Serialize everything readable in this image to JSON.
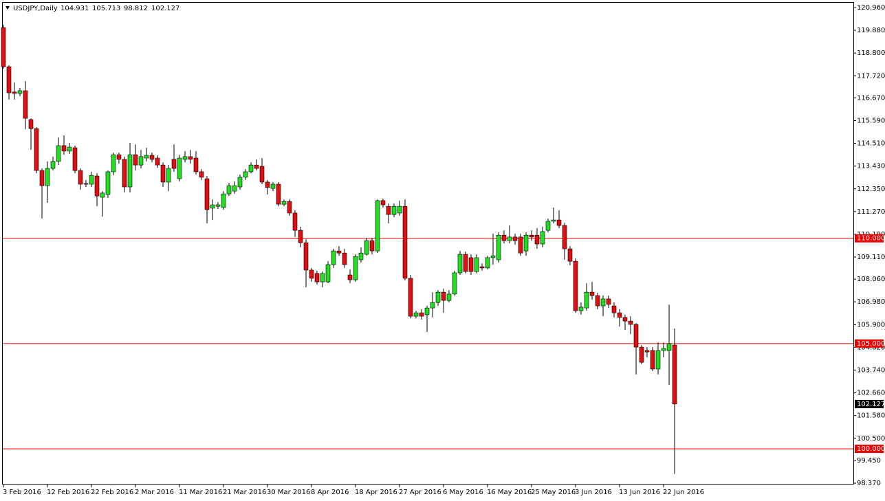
{
  "chart_data": {
    "type": "candlestick",
    "title": "USDJPY,Daily",
    "up_color": "#22dd22",
    "down_color": "#dd1111",
    "level_color": "#ee0000",
    "categories": [
      "3 Feb 2016",
      null,
      null,
      null,
      null,
      null,
      null,
      null,
      "12 Feb 2016",
      null,
      null,
      null,
      null,
      null,
      null,
      null,
      "22 Feb 2016",
      null,
      null,
      null,
      null,
      null,
      null,
      null,
      "2 Mar 2016",
      null,
      null,
      null,
      null,
      null,
      null,
      null,
      "11 Mar 2016",
      null,
      null,
      null,
      null,
      null,
      null,
      null,
      "21 Mar 2016",
      null,
      null,
      null,
      null,
      null,
      null,
      null,
      "30 Mar 2016",
      null,
      null,
      null,
      null,
      null,
      null,
      null,
      "8 Apr 2016",
      null,
      null,
      null,
      null,
      null,
      null,
      null,
      "18 Apr 2016",
      null,
      null,
      null,
      null,
      null,
      null,
      null,
      "27 Apr 2016",
      null,
      null,
      null,
      null,
      null,
      null,
      null,
      "6 May 2016",
      null,
      null,
      null,
      null,
      null,
      null,
      null,
      "16 May 2016",
      null,
      null,
      null,
      null,
      null,
      null,
      null,
      "25 May 2016",
      null,
      null,
      null,
      null,
      null,
      null,
      null,
      "3 Jun 2016",
      null,
      null,
      null,
      null,
      null,
      null,
      null,
      "13 Jun 2016",
      null,
      null,
      null,
      null,
      null,
      null,
      null,
      "22 Jun 2016",
      null,
      null
    ],
    "open": [
      120.01,
      118.15,
      116.95,
      116.88,
      117.01,
      115.64,
      115.21,
      113.22,
      112.5,
      113.32,
      113.65,
      114.4,
      114.14,
      114.3,
      113.22,
      112.6,
      112.57,
      112.96,
      111.95,
      112.08,
      113.16,
      113.97,
      113.75,
      112.44,
      113.97,
      113.48,
      113.81,
      113.94,
      113.81,
      113.48,
      112.67,
      113.75,
      112.83,
      113.75,
      113.88,
      113.81,
      113.16,
      112.83,
      111.43,
      111.52,
      111.46,
      112.11,
      112.24,
      112.44,
      112.9,
      113.16,
      113.48,
      113.42,
      112.67,
      112.37,
      112.57,
      111.62,
      111.75,
      111.2,
      110.38,
      109.79,
      108.49,
      108.33,
      107.93,
      107.93,
      108.75,
      109.4,
      109.3,
      108.26,
      108.03,
      108.98,
      109.24,
      109.89,
      109.4,
      111.79,
      111.52,
      111.13,
      111.2,
      111.52,
      108.1,
      106.3,
      106.46,
      106.37,
      106.69,
      106.95,
      107.44,
      107.05,
      107.35,
      108.36,
      109.24,
      109.08,
      108.42,
      108.65,
      108.59,
      109.08,
      108.98,
      110.15,
      109.89,
      110.06,
      110.06,
      109.4,
      110.15,
      110.15,
      109.73,
      110.38,
      110.81,
      110.87,
      110.61,
      109.5,
      108.91,
      106.56,
      106.69,
      107.44,
      107.28,
      106.79,
      107.12,
      106.79,
      106.46,
      106.24,
      106.07,
      105.91,
      104.83,
      104.67,
      104.67,
      103.79,
      104.67,
      104.67,
      104.931
    ],
    "high": [
      120.14,
      118.22,
      117.4,
      117.14,
      117.47,
      115.7,
      115.28,
      113.32,
      113.65,
      113.88,
      114.79,
      114.89,
      114.53,
      114.4,
      113.32,
      112.77,
      113.16,
      113.09,
      112.24,
      113.22,
      114.07,
      114.07,
      113.88,
      114.53,
      114.46,
      114.2,
      114.3,
      114.07,
      113.94,
      113.61,
      113.48,
      114.46,
      113.97,
      114.14,
      114.2,
      114.14,
      113.29,
      112.96,
      111.85,
      111.72,
      112.24,
      112.64,
      112.7,
      113.03,
      113.29,
      113.61,
      113.75,
      113.81,
      112.77,
      112.67,
      112.67,
      111.85,
      111.85,
      111.33,
      110.55,
      109.96,
      108.59,
      108.46,
      108.42,
      108.91,
      109.5,
      109.63,
      109.5,
      108.52,
      109.24,
      109.57,
      110.02,
      110.02,
      111.85,
      111.88,
      111.65,
      111.65,
      111.79,
      111.85,
      108.26,
      106.56,
      106.63,
      106.79,
      107.44,
      107.54,
      107.61,
      107.54,
      108.46,
      109.4,
      109.37,
      109.24,
      109.24,
      108.81,
      109.17,
      110.22,
      110.28,
      110.38,
      110.61,
      110.22,
      110.22,
      110.28,
      110.38,
      110.48,
      110.55,
      110.94,
      111.46,
      111.33,
      110.74,
      109.63,
      109.04,
      106.95,
      107.87,
      107.93,
      107.41,
      107.28,
      107.28,
      106.95,
      106.63,
      106.37,
      106.3,
      105.97,
      104.93,
      104.83,
      104.83,
      105.06,
      105.06,
      106.85,
      105.713
    ],
    "low": [
      118.05,
      116.59,
      116.59,
      116.75,
      115.18,
      114.2,
      113.09,
      110.94,
      111.69,
      113.22,
      113.48,
      113.97,
      114.01,
      113.09,
      112.31,
      112.44,
      112.44,
      111.52,
      111.03,
      111.92,
      112.99,
      113.55,
      112.18,
      112.18,
      113.22,
      113.32,
      113.65,
      113.61,
      113.35,
      112.44,
      112.24,
      113.16,
      112.7,
      113.61,
      113.55,
      113.03,
      112.77,
      110.71,
      110.87,
      111.39,
      111.36,
      112.01,
      112.11,
      112.31,
      112.77,
      113.09,
      113.22,
      112.57,
      112.08,
      112.24,
      111.52,
      111.52,
      111.07,
      110.06,
      109.57,
      107.67,
      107.93,
      107.8,
      107.67,
      107.87,
      108.59,
      109.17,
      108.59,
      107.87,
      107.93,
      108.85,
      109.17,
      109.24,
      109.3,
      111.46,
      110.71,
      111.0,
      111.07,
      108.0,
      106.2,
      106.2,
      106.14,
      105.55,
      106.24,
      106.79,
      106.46,
      106.95,
      107.28,
      108.26,
      108.33,
      108.26,
      108.33,
      108.46,
      108.52,
      108.75,
      108.85,
      109.76,
      109.76,
      109.7,
      109.17,
      109.17,
      109.89,
      109.5,
      109.57,
      110.28,
      110.71,
      110.48,
      108.98,
      108.72,
      106.46,
      106.37,
      106.56,
      107.08,
      106.63,
      106.3,
      106.69,
      106.24,
      105.81,
      105.65,
      105.45,
      103.53,
      104.02,
      104.34,
      103.69,
      103.53,
      104.34,
      103.04,
      98.812
    ],
    "close": [
      118.15,
      116.91,
      116.88,
      117.01,
      115.7,
      115.21,
      113.22,
      112.5,
      113.32,
      113.65,
      114.4,
      114.14,
      114.33,
      113.22,
      112.57,
      112.57,
      112.99,
      112.01,
      112.15,
      113.16,
      113.97,
      113.75,
      112.44,
      113.97,
      113.48,
      113.88,
      113.94,
      113.75,
      113.48,
      112.67,
      113.32,
      113.32,
      113.81,
      113.88,
      113.75,
      113.16,
      112.9,
      111.36,
      111.59,
      111.59,
      112.11,
      112.5,
      112.5,
      112.9,
      113.16,
      113.48,
      113.32,
      112.67,
      112.41,
      112.57,
      111.62,
      111.75,
      111.2,
      110.38,
      109.79,
      108.49,
      108.1,
      107.93,
      108.33,
      108.75,
      109.4,
      109.3,
      108.75,
      108.03,
      109.14,
      109.3,
      109.89,
      109.4,
      111.79,
      111.59,
      111.13,
      111.52,
      111.52,
      108.1,
      106.3,
      106.46,
      106.3,
      106.69,
      106.95,
      107.44,
      107.05,
      107.35,
      108.36,
      109.24,
      108.42,
      108.42,
      109.08,
      108.59,
      109.08,
      109.17,
      110.15,
      109.89,
      110.06,
      109.89,
      109.3,
      110.15,
      110.06,
      109.73,
      110.32,
      110.81,
      110.87,
      110.61,
      109.5,
      108.91,
      106.56,
      106.73,
      107.44,
      107.28,
      106.79,
      107.12,
      106.86,
      106.46,
      106.24,
      106.07,
      105.91,
      104.83,
      104.11,
      104.6,
      103.79,
      104.67,
      104.77,
      104.99,
      102.127
    ],
    "ylim": [
      98.37,
      120.96
    ],
    "yticks": [
      {
        "value": 120.96,
        "label": "120.960"
      },
      {
        "value": 119.88,
        "label": "119.880"
      },
      {
        "value": 118.8,
        "label": "118.800"
      },
      {
        "value": 117.72,
        "label": "117.720"
      },
      {
        "value": 116.67,
        "label": "116.670"
      },
      {
        "value": 115.59,
        "label": "115.590"
      },
      {
        "value": 114.51,
        "label": "114.510"
      },
      {
        "value": 113.43,
        "label": "113.430"
      },
      {
        "value": 112.35,
        "label": "112.350"
      },
      {
        "value": 111.27,
        "label": "111.270"
      },
      {
        "value": 110.19,
        "label": "110.190"
      },
      {
        "value": 109.11,
        "label": "109.110"
      },
      {
        "value": 108.06,
        "label": "108.060"
      },
      {
        "value": 106.98,
        "label": "106.980"
      },
      {
        "value": 105.9,
        "label": "105.900"
      },
      {
        "value": 104.82,
        "label": "104.820"
      },
      {
        "value": 103.74,
        "label": "103.740"
      },
      {
        "value": 102.66,
        "label": "102.660"
      },
      {
        "value": 101.58,
        "label": "101.580"
      },
      {
        "value": 100.5,
        "label": "100.500"
      },
      {
        "value": 99.45,
        "label": "99.450"
      },
      {
        "value": 98.37,
        "label": "98.370"
      }
    ],
    "levels": [
      {
        "value": 110,
        "label": "110.000"
      },
      {
        "value": 105,
        "label": "105.000"
      },
      {
        "value": 100,
        "label": "100.000"
      }
    ],
    "grid": false
  }
}
